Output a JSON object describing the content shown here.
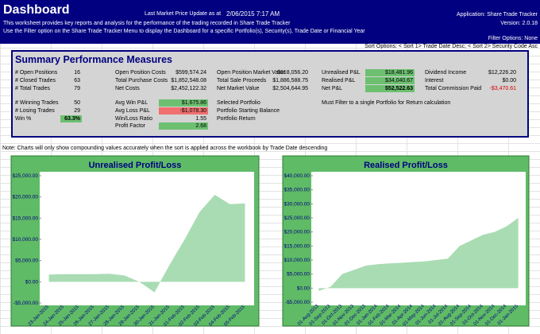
{
  "header": {
    "title": "Dashboard",
    "update_label": "Last Market Price Update as at",
    "update_time": "2/06/2015 7:17 AM",
    "application": "Application: Share Trade Tracker",
    "version": "Version: 2.0.18",
    "description_1": "This worksheet provides key reports and analysis for the performance of the trading recorded in Share Trade Tracker",
    "description_2": "Use the Filter option on the Share Trade Tracker Menu to display the Dashboard for a specific Portfolio(s), Security(s), Trade Date or Financial Year",
    "filter_options": "Filter Options: None",
    "sort_options": "Sort Options: < Sort 1> Trade Date Desc; < Sort 2> Security Code Asc"
  },
  "summary": {
    "title": "Summary Performance Measures",
    "columns": [
      {
        "rows": [
          {
            "label": "# Open Positions",
            "value": "16"
          },
          {
            "label": "# Closed Trades",
            "value": "63"
          },
          {
            "label": "# Total Trades",
            "value": "79"
          },
          {
            "label": "# Winning Trades",
            "value": "50"
          },
          {
            "label": "# Losing Trades",
            "value": "29"
          },
          {
            "label": "Win %",
            "value": "63.3%"
          }
        ]
      },
      {
        "rows": [
          {
            "label": "Open Position Costs",
            "value": "$599,574.24"
          },
          {
            "label": "Total Purchase Costs",
            "value": "$1,852,548.08"
          },
          {
            "label": "Net Costs",
            "value": "$2,452,122.32"
          },
          {
            "label": "Avg Win P&L",
            "value": "$1,675.86"
          },
          {
            "label": "Avg Loss P&L",
            "value": "-$1,078.30"
          },
          {
            "label": "Win/Loss Ratio",
            "value": "1.55"
          },
          {
            "label": "Profit Factor",
            "value": "2.68"
          }
        ]
      },
      {
        "rows": [
          {
            "label": "Open Position Market Value",
            "value": "$618,056.20"
          },
          {
            "label": "Total Sale Proceeds",
            "value": "$1,886,588.75"
          },
          {
            "label": "Net Market Value",
            "value": "$2,504,644.95"
          },
          {
            "label": "Selected Portfolio"
          },
          {
            "label": "Portfolio Starting Balance"
          },
          {
            "label": "Portfolio Return"
          }
        ]
      },
      {
        "rows": [
          {
            "label": "Unrealised P&L",
            "value": "$18,481.96"
          },
          {
            "label": "Realised P&L",
            "value": "$34,040.67"
          },
          {
            "label": "Net P&L",
            "value": "$52,522.63"
          }
        ],
        "note": "Must Filter to a single Portfolio for Return calculation"
      },
      {
        "rows": [
          {
            "label": "Dividend Income",
            "value": "$12,226.20"
          },
          {
            "label": "Interest",
            "value": "$0.00"
          },
          {
            "label": "Total Commission Paid",
            "value": "-$3,470.61"
          }
        ]
      }
    ]
  },
  "note": "Note: Charts will only show compounding values accurately when the sort is applied across the workbook by Trade Date descending",
  "chart_data": [
    {
      "type": "area",
      "title": "Unrealised Profit/Loss",
      "color": "#a9dcb3",
      "categories": [
        "23-Jan-2015",
        "24-Jan-2015",
        "25-Jan-2015",
        "26-Jan-2015",
        "27-Jan-2015",
        "28-Jan-2015",
        "29-Jan-2015",
        "30-Jan-2015",
        "31-Jan-2015",
        "01-Feb-2015",
        "02-Feb-2015",
        "03-Feb-2015",
        "04-Feb-2015",
        "05-Feb-2015"
      ],
      "values": [
        1700,
        1800,
        1800,
        1800,
        1900,
        1500,
        0,
        -2500,
        4000,
        10000,
        16500,
        20500,
        18300,
        18482
      ],
      "ylim": [
        -5000,
        25000
      ],
      "yticks": [
        {
          "value": -5000,
          "label": "-$5,000.00"
        },
        {
          "value": 0,
          "label": "$0.00"
        },
        {
          "value": 5000,
          "label": "$5,000.00"
        },
        {
          "value": 10000,
          "label": "$10,000.00"
        },
        {
          "value": 15000,
          "label": "$15,000.00"
        },
        {
          "value": 20000,
          "label": "$20,000.00"
        },
        {
          "value": 25000,
          "label": "$25,000.00"
        }
      ]
    },
    {
      "type": "area",
      "title": "Realised Profit/Loss",
      "color": "#a9dcb3",
      "categories": [
        "01-Aug-2013",
        "01-Sep-2013",
        "01-Oct-2013",
        "01-Nov-2013",
        "01-Dec-2013",
        "01-Jan-2014",
        "01-Feb-2014",
        "01-Mar-2014",
        "01-Apr-2014",
        "01-May-2014",
        "01-Jun-2014",
        "01-Jul-2014",
        "01-Aug-2014",
        "01-Sep-2014",
        "01-Oct-2014",
        "01-Nov-2014",
        "01-Dec-2014",
        "01-Jan-2015"
      ],
      "values": [
        -1000,
        500,
        5000,
        6500,
        8000,
        8500,
        8800,
        9000,
        9300,
        9500,
        10000,
        10500,
        15000,
        17000,
        19000,
        20000,
        22000,
        25000
      ],
      "ylim": [
        -5000,
        40000
      ],
      "yticks": [
        {
          "value": -5000,
          "label": "-$5,000.00"
        },
        {
          "value": 0,
          "label": "$0.00"
        },
        {
          "value": 5000,
          "label": "$5,000.00"
        },
        {
          "value": 10000,
          "label": "$10,000.00"
        },
        {
          "value": 15000,
          "label": "$15,000.00"
        },
        {
          "value": 20000,
          "label": "$20,000.00"
        },
        {
          "value": 25000,
          "label": "$25,000.00"
        },
        {
          "value": 30000,
          "label": "$30,000.00"
        },
        {
          "value": 35000,
          "label": "$35,000.00"
        },
        {
          "value": 40000,
          "label": "$40,000.00"
        }
      ]
    }
  ]
}
